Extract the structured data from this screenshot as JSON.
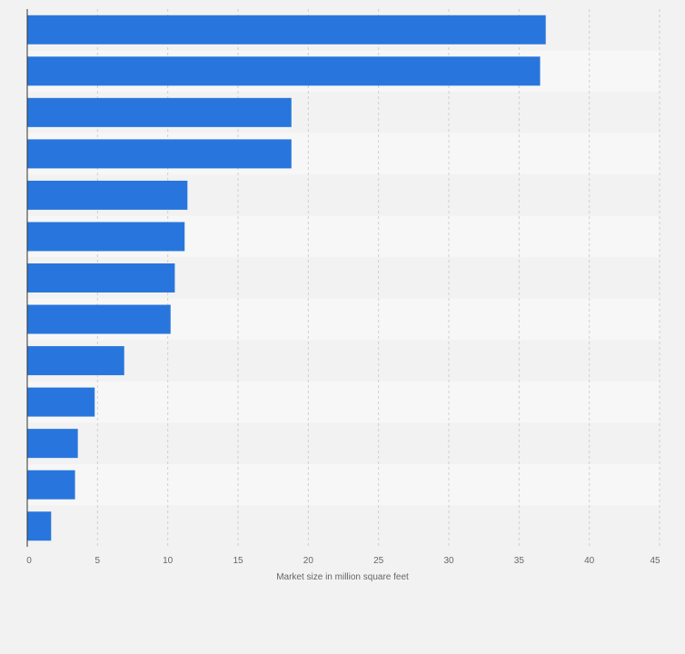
{
  "chart_data": {
    "type": "bar",
    "orientation": "horizontal",
    "categories": [
      "",
      "",
      "",
      "",
      "",
      "",
      "",
      "",
      "",
      "",
      "",
      "",
      ""
    ],
    "values": [
      36.9,
      36.5,
      18.8,
      18.8,
      11.4,
      11.2,
      10.5,
      10.2,
      6.9,
      4.8,
      3.6,
      3.4,
      1.7
    ],
    "xlabel": "Market size in million square feet",
    "ylabel": "",
    "xlim": [
      0,
      45
    ],
    "xticks": [
      0,
      5,
      10,
      15,
      20,
      25,
      30,
      35,
      40,
      45
    ],
    "xtick_labels": [
      "0",
      "5",
      "10",
      "15",
      "20",
      "25",
      "30",
      "35",
      "40",
      "45"
    ],
    "grid": "vertical dashed",
    "bar_color": "#2876dd",
    "band_colors": [
      "#f2f2f2",
      "#f7f7f7"
    ],
    "background_color": "#f2f2f2",
    "gridline_color": "#cfcfcf"
  }
}
